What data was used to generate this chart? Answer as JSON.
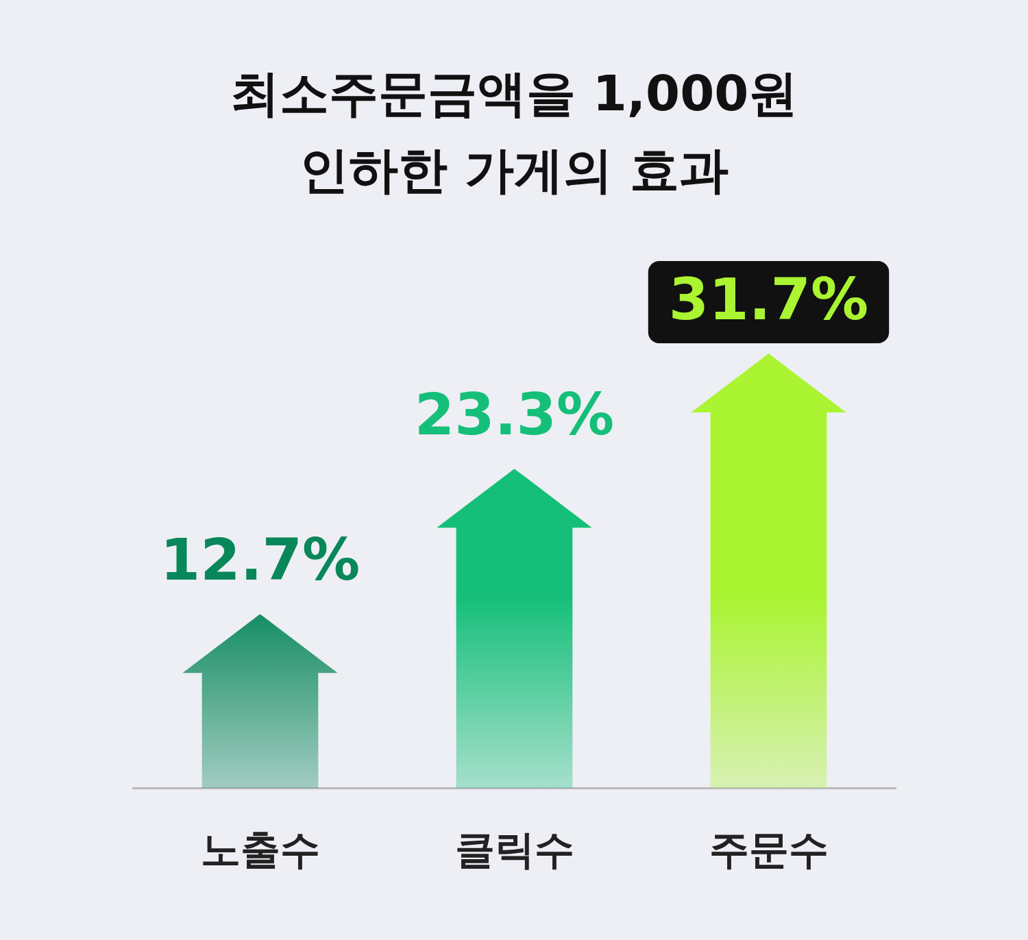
{
  "chart_data": {
    "type": "bar",
    "title": "최소주문금액을 1,000원 인하한 가게의 효과",
    "categories": [
      "노출수",
      "클릭수",
      "주문수"
    ],
    "values": [
      12.7,
      23.3,
      31.7
    ],
    "colors": [
      "#08875a",
      "#15bf7a",
      "#aaf432"
    ],
    "value_labels": [
      "12.7%",
      "23.3%",
      "31.7%"
    ],
    "tick_labels": "x",
    "grid": false,
    "legend": false
  }
}
